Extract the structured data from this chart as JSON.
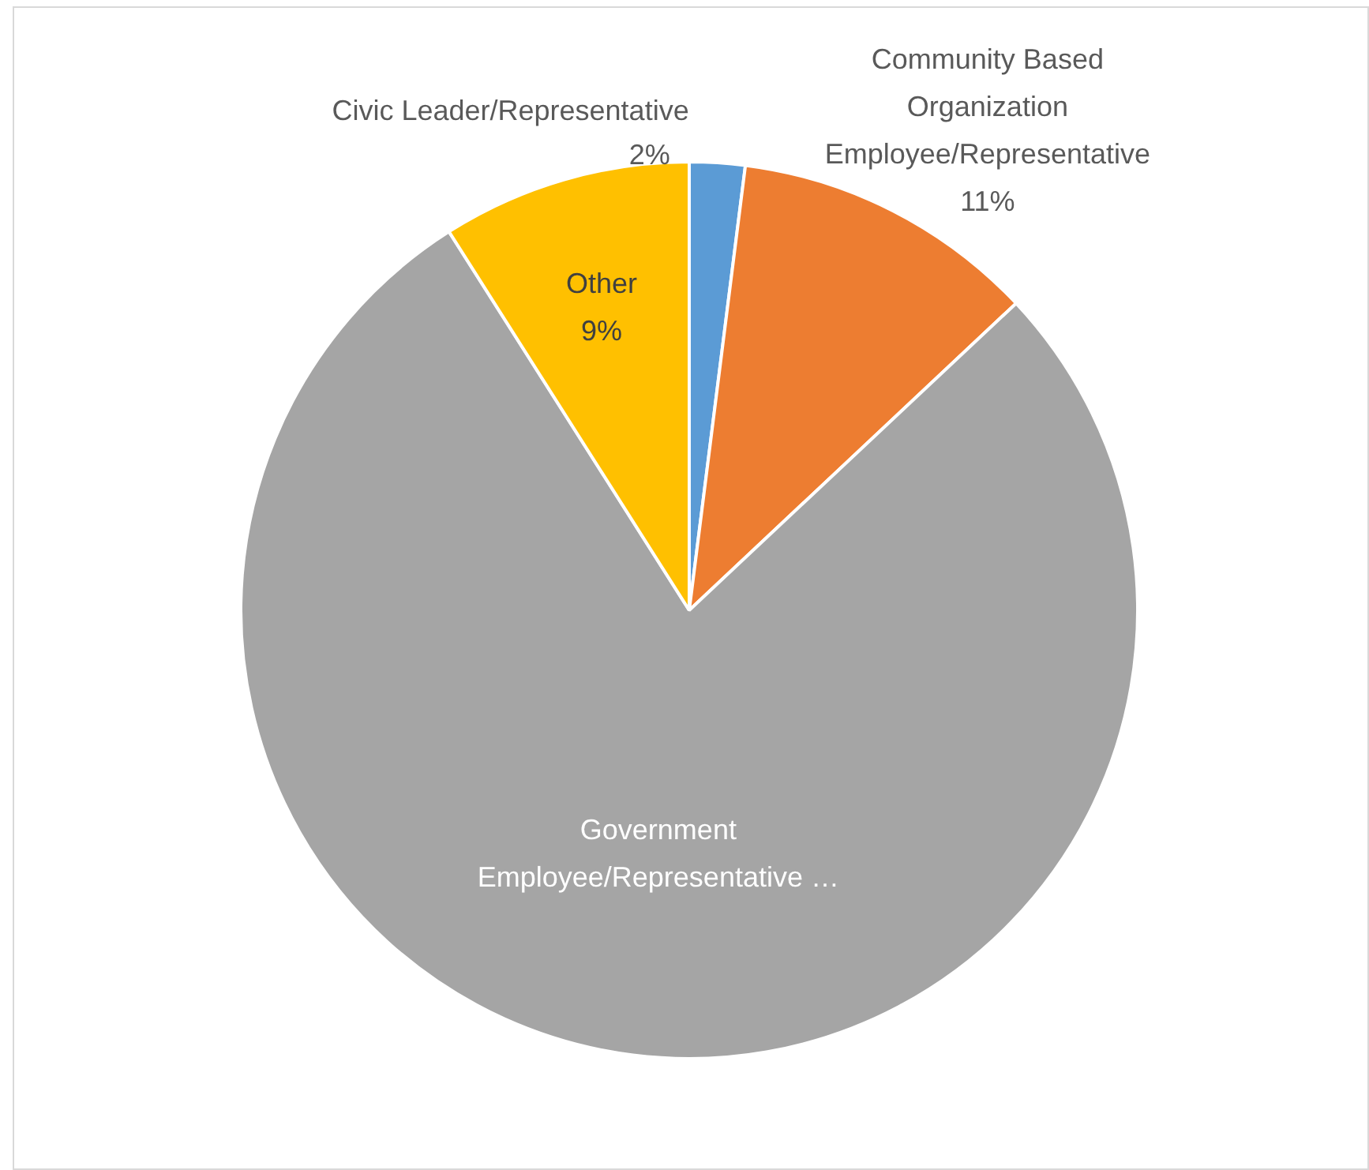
{
  "chart_data": {
    "type": "pie",
    "categories": [
      "Civic Leader/Representative",
      "Community Based Organization Employee/Representative",
      "Government Employee/Representative …",
      "Other"
    ],
    "values": [
      2,
      11,
      78,
      9
    ],
    "value_labels": [
      "2%",
      "11%",
      null,
      "9%"
    ],
    "colors": [
      "#5b9bd5",
      "#ed7d31",
      "#a5a5a5",
      "#ffc000"
    ],
    "legend": false
  }
}
